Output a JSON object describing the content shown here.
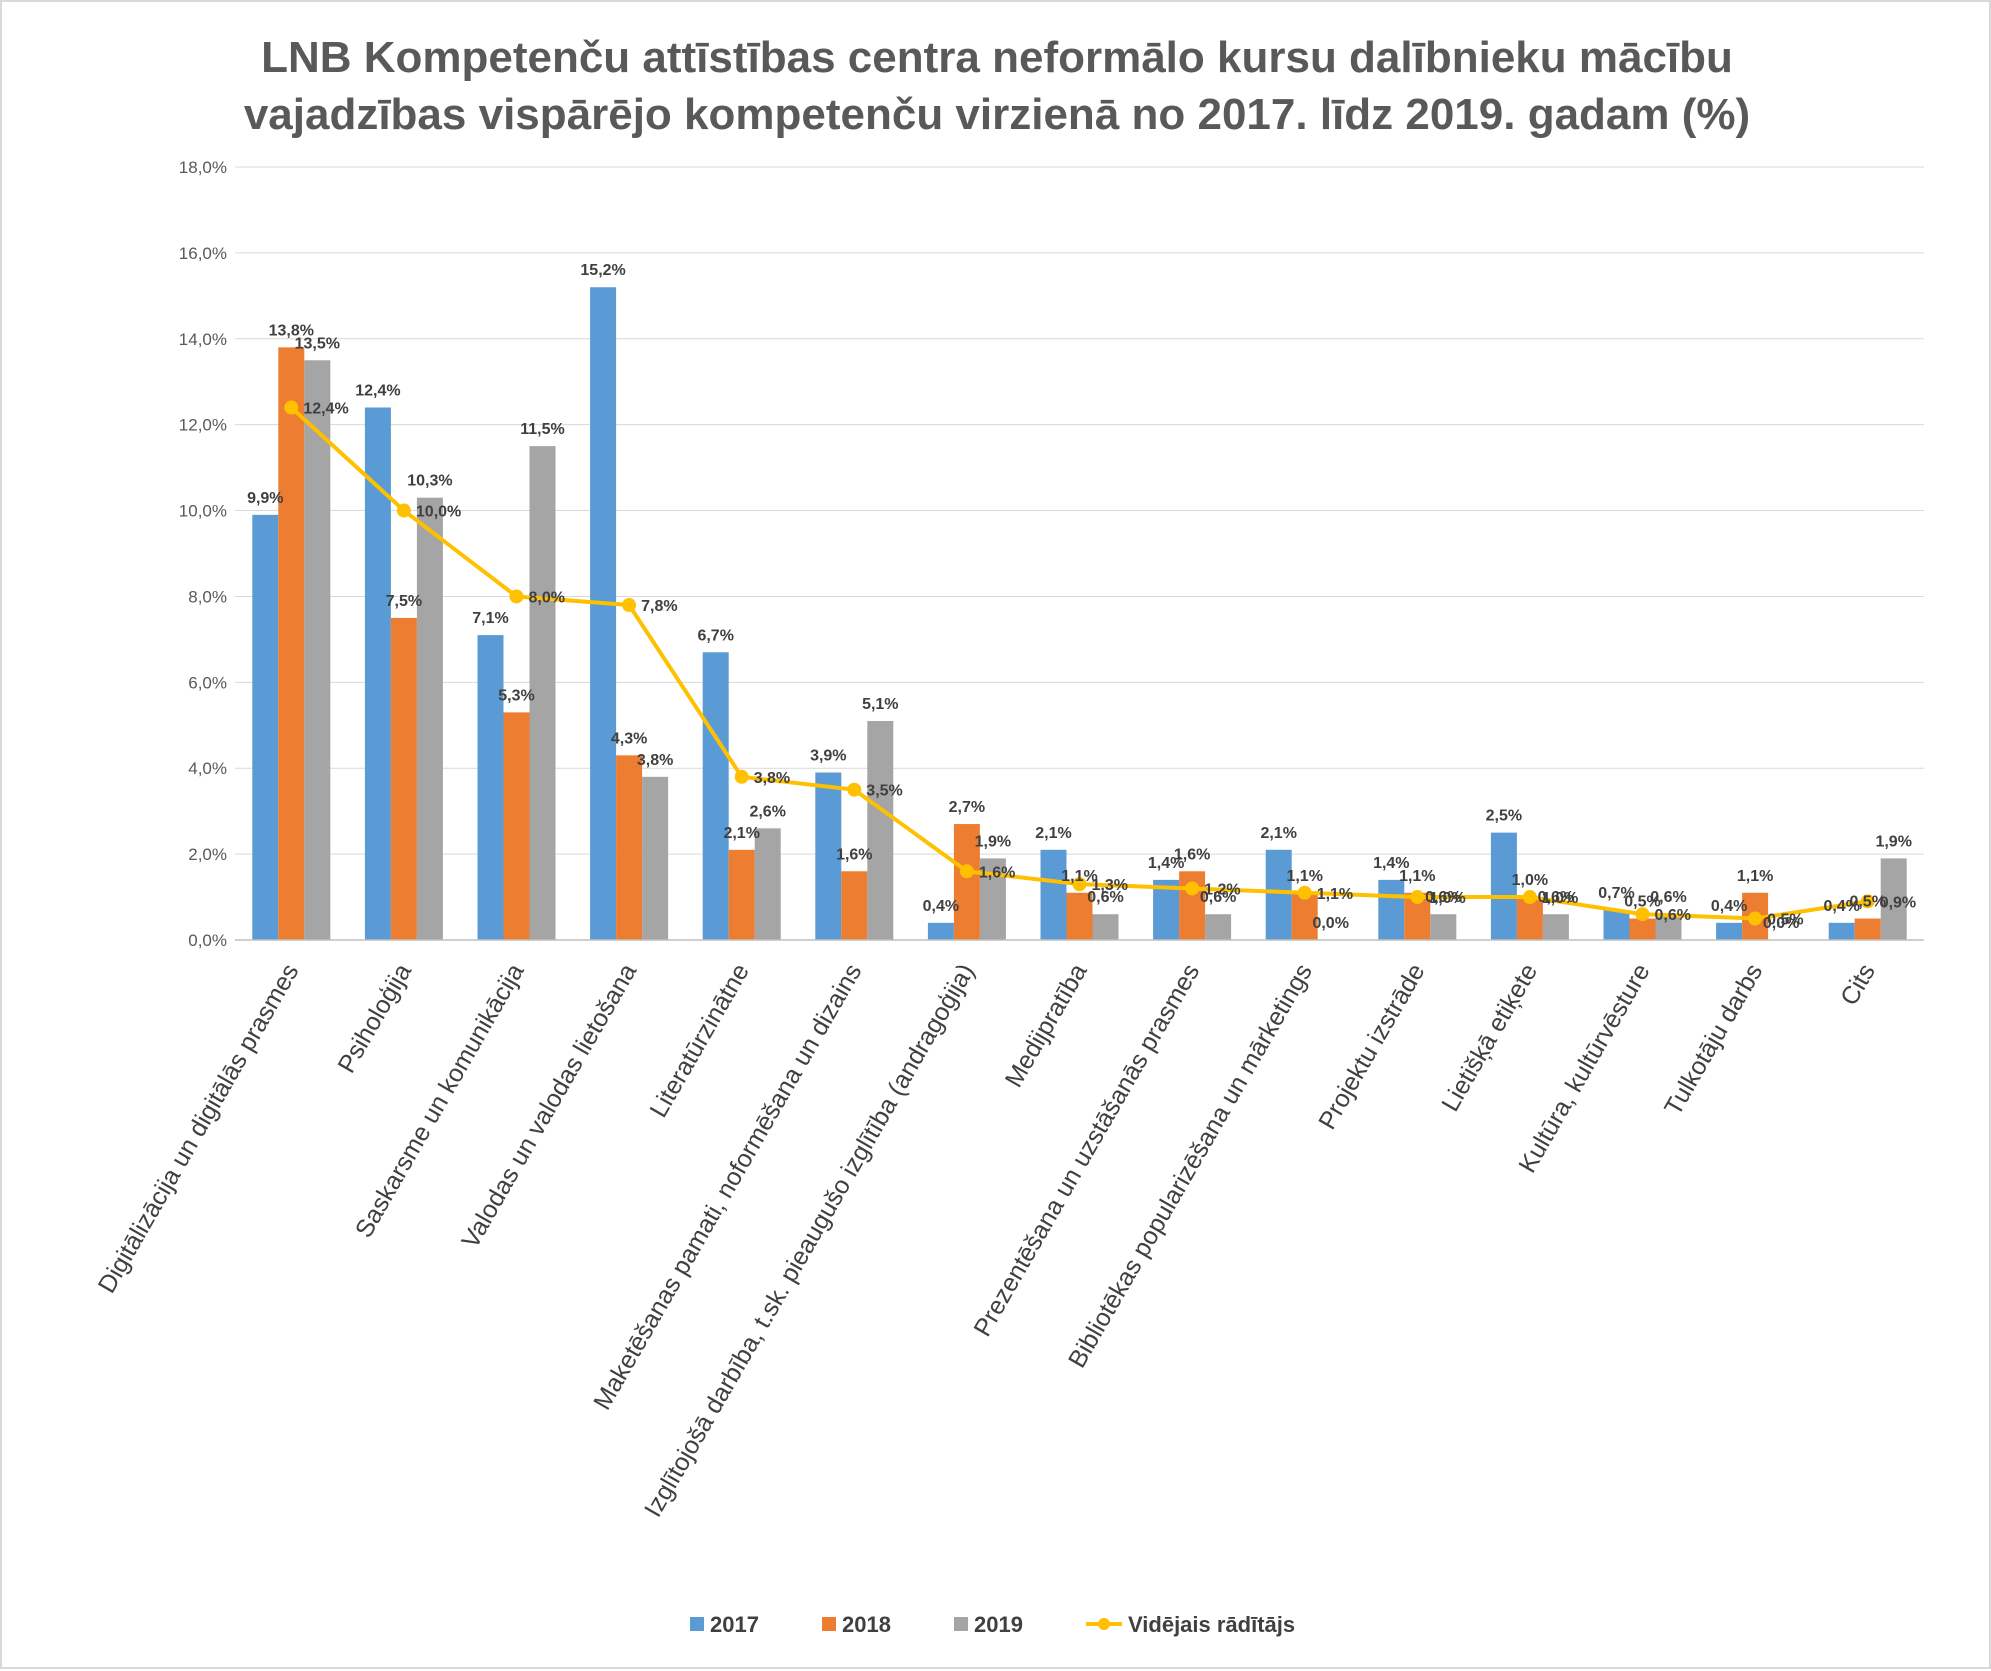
{
  "chart_data": {
    "type": "bar",
    "title_lines": [
      "LNB Kompetenču attīstības centra neformālo kursu dalībnieku mācību",
      "vajadzības vispārējo kompetenču virzienā no 2017. līdz 2019. gadam (%)"
    ],
    "ylim": [
      0,
      18
    ],
    "y_ticks": [
      0,
      2,
      4,
      6,
      8,
      10,
      12,
      14,
      16,
      18
    ],
    "y_tick_labels": [
      "0,0%",
      "2,0%",
      "4,0%",
      "6,0%",
      "8,0%",
      "10,0%",
      "12,0%",
      "14,0%",
      "16,0%",
      "18,0%"
    ],
    "grid": true,
    "legend_position": "bottom",
    "categories": [
      "Digitālizācija un digitālās prasmes",
      "Psiholoģija",
      "Saskarsme un komunikācija",
      "Valodas un valodas lietošana",
      "Literatūrzinātne",
      "Maketēšanas pamati, noformēšana un dizains",
      "Izglītojošā darbība, t.sk. pieaugušo izglītība (andragoģija)",
      "Medijpratība",
      "Prezentēšana un uzstāšanās prasmes",
      "Bibliotēkas popularizēšana un mārketings",
      "Projektu izstrāde",
      "Lietišķā etiķete",
      "Kultūra, kultūrvēsture",
      "Tulkotāju darbs",
      "Cits"
    ],
    "series": [
      {
        "name": "2017",
        "type": "bar",
        "color": "#5b9bd5",
        "values": [
          9.9,
          12.4,
          7.1,
          15.2,
          6.7,
          3.9,
          0.4,
          2.1,
          1.4,
          2.1,
          1.4,
          2.5,
          0.7,
          0.4,
          0.4
        ],
        "labels": [
          "9,9%",
          "12,4%",
          "7,1%",
          "15,2%",
          "6,7%",
          "3,9%",
          "0,4%",
          "2,1%",
          "1,4%",
          "2,1%",
          "1,4%",
          "2,5%",
          "0,7%",
          "0,4%",
          "0,4%"
        ]
      },
      {
        "name": "2018",
        "type": "bar",
        "color": "#ed7d31",
        "values": [
          13.8,
          7.5,
          5.3,
          4.3,
          2.1,
          1.6,
          2.7,
          1.1,
          1.6,
          1.1,
          1.1,
          1.0,
          0.5,
          1.1,
          0.5
        ],
        "labels": [
          "13,8%",
          "7,5%",
          "5,3%",
          "4,3%",
          "2,1%",
          "1,6%",
          "2,7%",
          "1,1%",
          "1,6%",
          "1,1%",
          "1,1%",
          "1,0%",
          "0,5%",
          "1,1%",
          "0,5%"
        ]
      },
      {
        "name": "2019",
        "type": "bar",
        "color": "#a5a5a5",
        "values": [
          13.5,
          10.3,
          11.5,
          3.8,
          2.6,
          5.1,
          1.9,
          0.6,
          0.6,
          0.0,
          0.6,
          0.6,
          0.6,
          0.0,
          1.9
        ],
        "labels": [
          "13,5%",
          "10,3%",
          "11,5%",
          "3,8%",
          "2,6%",
          "5,1%",
          "1,9%",
          "0,6%",
          "0,6%",
          "0,0%",
          "0,6%",
          "0,6%",
          "0,6%",
          "0,0%",
          "1,9%"
        ]
      },
      {
        "name": "Vidējais rādītājs",
        "type": "line",
        "color": "#ffc000",
        "values": [
          12.4,
          10.0,
          8.0,
          7.8,
          3.8,
          3.5,
          1.6,
          1.3,
          1.2,
          1.1,
          1.0,
          1.0,
          0.6,
          0.5,
          0.9
        ],
        "labels": [
          "12,4%",
          "10,0%",
          "8,0%",
          "7,8%",
          "3,8%",
          "3,5%",
          "1,6%",
          "1,3%",
          "1,2%",
          "1,1%",
          "1,0%",
          "1,0%",
          "0,6%",
          "0,5%",
          "0,9%"
        ]
      }
    ]
  }
}
